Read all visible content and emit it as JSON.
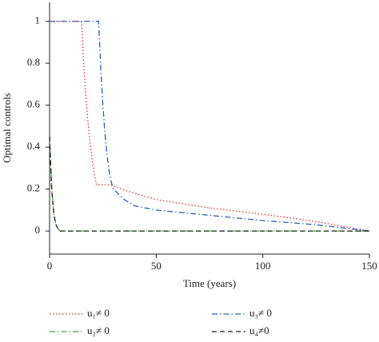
{
  "chart_data": {
    "type": "line",
    "xlabel": "Time (years)",
    "ylabel": "Optimal controls",
    "x": [
      0,
      1,
      2,
      3,
      4,
      5,
      10,
      15,
      16,
      17,
      18,
      19,
      20,
      21,
      22,
      23,
      24,
      25,
      26,
      27,
      28,
      29,
      30,
      35,
      40,
      50,
      75,
      100,
      125,
      150
    ],
    "series": [
      {
        "name": "u₁≠ 0",
        "color": "#e8312f",
        "linestyle": "dotted",
        "values": [
          1,
          1,
          1,
          1,
          1,
          1,
          1,
          1,
          0.8,
          0.65,
          0.52,
          0.42,
          0.34,
          0.27,
          0.22,
          0.22,
          0.22,
          0.22,
          0.22,
          0.22,
          0.22,
          0.218,
          0.215,
          0.195,
          0.18,
          0.15,
          0.11,
          0.08,
          0.045,
          0
        ]
      },
      {
        "name": "u₂≠ 0",
        "color": "#3aa63a",
        "linestyle": "dashdot",
        "values": [
          0.45,
          0.2,
          0.08,
          0.03,
          0.01,
          0,
          0,
          0,
          0,
          0,
          0,
          0,
          0,
          0,
          0,
          0,
          0,
          0,
          0,
          0,
          0,
          0,
          0,
          0,
          0,
          0,
          0,
          0,
          0,
          0
        ]
      },
      {
        "name": "u₃≠ 0",
        "color": "#2a5fb0",
        "linestyle": "dashdot",
        "values": [
          1,
          1,
          1,
          1,
          1,
          1,
          1,
          1,
          1,
          1,
          1,
          1,
          1,
          1,
          1,
          1,
          0.78,
          0.6,
          0.46,
          0.36,
          0.28,
          0.23,
          0.2,
          0.15,
          0.12,
          0.1,
          0.075,
          0.05,
          0.03,
          0
        ]
      },
      {
        "name": "u₄≠0",
        "color": "#222222",
        "linestyle": "dashed",
        "values": [
          0.45,
          0.2,
          0.08,
          0.03,
          0.01,
          0,
          0,
          0,
          0,
          0,
          0,
          0,
          0,
          0,
          0,
          0,
          0,
          0,
          0,
          0,
          0,
          0,
          0,
          0,
          0,
          0,
          0,
          0,
          0,
          0
        ]
      }
    ],
    "xlim": [
      0,
      150
    ],
    "xticks": [
      0,
      50,
      100,
      150
    ],
    "ylim": [
      -0.11,
      1.09
    ],
    "yticks": [
      0,
      0.2,
      0.4,
      0.6,
      0.8,
      1
    ]
  }
}
